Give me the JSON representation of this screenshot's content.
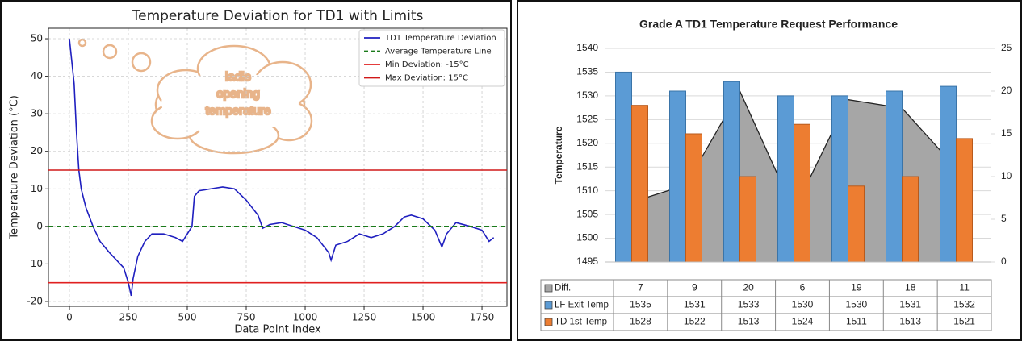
{
  "chart_data": [
    {
      "type": "line",
      "title": "Temperature Deviation for TD1 with Limits",
      "xlabel": "Data Point Index",
      "ylabel": "Temperature Deviation (°C)",
      "xlim": [
        -89,
        1856
      ],
      "xticks": [
        0,
        250,
        500,
        750,
        1000,
        1250,
        1500,
        1750
      ],
      "ylim": [
        -21.3,
        52.8
      ],
      "yticks": [
        -20,
        -10,
        0,
        10,
        20,
        30,
        40,
        50
      ],
      "grid": true,
      "legend": "upper right",
      "annotation": [
        "ladle",
        "opening",
        "temperature"
      ],
      "series": [
        {
          "name": "TD1 Temperature Deviation",
          "color": "#1f1fbf",
          "x": [
            0,
            20,
            30,
            40,
            50,
            70,
            100,
            130,
            170,
            200,
            230,
            250,
            262,
            270,
            290,
            320,
            350,
            400,
            450,
            480,
            500,
            520,
            530,
            550,
            600,
            650,
            700,
            750,
            800,
            820,
            850,
            900,
            950,
            1000,
            1050,
            1100,
            1110,
            1130,
            1180,
            1230,
            1280,
            1330,
            1380,
            1420,
            1450,
            1500,
            1550,
            1580,
            1600,
            1640,
            1700,
            1750,
            1780,
            1800
          ],
          "values": [
            50,
            38,
            25,
            15,
            10,
            5,
            0,
            -4,
            -7,
            -9,
            -11,
            -15,
            -18.5,
            -14,
            -8,
            -4,
            -2,
            -2,
            -3,
            -4,
            -2,
            0,
            8,
            9.5,
            10,
            10.5,
            10,
            7,
            3,
            -0.5,
            0.5,
            1,
            0,
            -1,
            -3,
            -7,
            -9,
            -5,
            -4,
            -2,
            -3,
            -2,
            0,
            2.5,
            3,
            2,
            -1,
            -5.5,
            -2,
            1,
            0,
            -1,
            -4,
            -3
          ]
        },
        {
          "name": "Average Temperature Line",
          "color": "#1a7a1a",
          "dash": true,
          "y": 0
        },
        {
          "name": "Min Deviation: -15°C",
          "color": "#e02020",
          "y": -15
        },
        {
          "name": "Max Deviation: 15°C",
          "color": "#d01818",
          "y": 15
        }
      ]
    },
    {
      "type": "bar",
      "title": "Grade A TD1 Temperature Request Performance",
      "ylabel": "Temperature",
      "categories": [
        null,
        null,
        null,
        null,
        null,
        null,
        null
      ],
      "ylim": [
        1495,
        1540
      ],
      "yticks": [
        1495,
        1500,
        1505,
        1510,
        1515,
        1520,
        1525,
        1530,
        1535,
        1540
      ],
      "y2lim": [
        0,
        25
      ],
      "y2ticks": [
        0,
        5,
        10,
        15,
        20,
        25
      ],
      "grid": true,
      "series": [
        {
          "name": "Diff.",
          "color": "#a6a6a6",
          "type": "area",
          "axis": "y2",
          "values": [
            7,
            9,
            20,
            6,
            19,
            18,
            11
          ]
        },
        {
          "name": "LF Exit Temp",
          "color": "#5b9bd5",
          "values": [
            1535,
            1531,
            1533,
            1530,
            1530,
            1531,
            1532
          ]
        },
        {
          "name": "TD 1st Temp",
          "color": "#ed7d31",
          "values": [
            1528,
            1522,
            1513,
            1524,
            1511,
            1513,
            1521
          ]
        }
      ]
    }
  ]
}
